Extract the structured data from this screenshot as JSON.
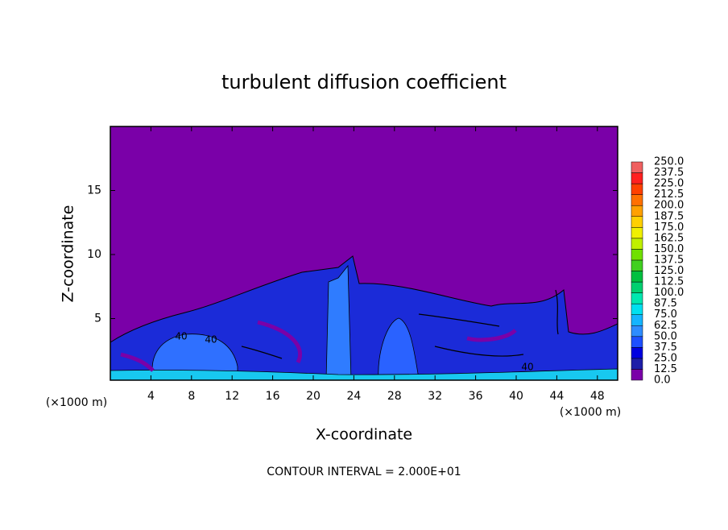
{
  "chart_data": {
    "type": "contour",
    "title": "turbulent diffusion coefficient",
    "x_label": "X-coordinate",
    "y_label": "Z-coordinate",
    "x_unit": "(×1000 m)",
    "y_unit": "(×1000 m)",
    "annotation": "CONTOUR INTERVAL = 2.000E+01",
    "xlim": [
      0,
      50
    ],
    "xticks": [
      4,
      8,
      12,
      16,
      20,
      24,
      28,
      32,
      36,
      40,
      44,
      48
    ],
    "ylim": [
      0,
      20
    ],
    "yticks": [
      5,
      10,
      15
    ],
    "contour_labels": [
      40,
      40,
      40
    ],
    "colorbar_levels": [
      {
        "value": 0,
        "label": "0.0"
      },
      {
        "value": 12.5,
        "label": "12.5"
      },
      {
        "value": 25,
        "label": "25.0"
      },
      {
        "value": 37.5,
        "label": "37.5"
      },
      {
        "value": 50,
        "label": "50.0"
      },
      {
        "value": 62.5,
        "label": "62.5"
      },
      {
        "value": 75,
        "label": "75.0"
      },
      {
        "value": 87.5,
        "label": "87.5"
      },
      {
        "value": 100,
        "label": "100.0"
      },
      {
        "value": 112.5,
        "label": "112.5"
      },
      {
        "value": 125,
        "label": "125.0"
      },
      {
        "value": 137.5,
        "label": "137.5"
      },
      {
        "value": 150,
        "label": "150.0"
      },
      {
        "value": 162.5,
        "label": "162.5"
      },
      {
        "value": 175,
        "label": "175.0"
      },
      {
        "value": 187.5,
        "label": "187.5"
      },
      {
        "value": 200,
        "label": "200.0"
      },
      {
        "value": 212.5,
        "label": "212.5"
      },
      {
        "value": 225,
        "label": "225.0"
      },
      {
        "value": 237.5,
        "label": "237.5"
      },
      {
        "value": 250,
        "label": "250.0"
      }
    ],
    "colorbar_colors": [
      "#7a00a8",
      "#1e1ea8",
      "#0000e0",
      "#1e50ff",
      "#2e8cff",
      "#14b4ff",
      "#00e0f0",
      "#00e8b0",
      "#00d070",
      "#00c040",
      "#40d020",
      "#70e000",
      "#c0f000",
      "#f0f000",
      "#ffd000",
      "#ffa000",
      "#ff7000",
      "#ff4000",
      "#ff2020",
      "#f06060"
    ]
  }
}
